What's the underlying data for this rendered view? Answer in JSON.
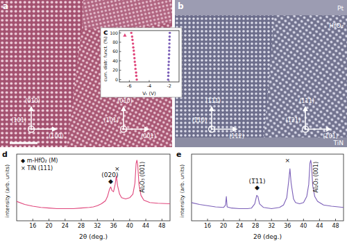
{
  "tem_a": {
    "title": "a",
    "orientations": [
      {
        "up": "(010)",
        "out": "(101)",
        "right": "(100)"
      },
      {
        "up": "(010)",
        "out": "(101)",
        "right": "(001)"
      }
    ]
  },
  "tem_b": {
    "title": "b",
    "layers": [
      "Pt",
      "HfO₂",
      "TiN"
    ],
    "orientations": [
      {
        "up": "(111)",
        "out": "(1̅10)",
        "right": "(112)"
      },
      {
        "up": "(111)",
        "out": "(1̅21)",
        "right": "(101)"
      }
    ]
  },
  "chart_data": [
    {
      "type": "scatter",
      "title": "c",
      "x_label": "Vₜ (V)",
      "y_label": "cum. distr. funct. (%)",
      "xlim": [
        -7,
        -1
      ],
      "xticks": [
        -6,
        -4,
        -2
      ],
      "ylim": [
        -5,
        105
      ],
      "yticks": [
        0,
        20,
        40,
        60,
        80,
        100
      ],
      "series": [
        {
          "color": "#e0457b",
          "marker": "circle",
          "x": [
            -5.25,
            -5.3,
            -5.32,
            -5.38,
            -5.4,
            -5.45,
            -5.48,
            -5.52,
            -5.55,
            -5.6,
            -5.63,
            -5.68,
            -5.72,
            -5.8
          ],
          "values": [
            0,
            8,
            15,
            23,
            31,
            38,
            46,
            54,
            62,
            69,
            77,
            85,
            92,
            100
          ]
        },
        {
          "color": "#e0457b",
          "marker": "triangle",
          "x": [
            -6.45
          ],
          "values": [
            95
          ]
        },
        {
          "color": "#7b5fb8",
          "marker": "circle",
          "x": [
            -2.1,
            -2.08,
            -2.07,
            -2.06,
            -2.05,
            -2.03,
            -2.02,
            -2.0,
            -1.99,
            -1.98,
            -1.97,
            -1.96,
            -1.95,
            -1.93
          ],
          "values": [
            0,
            8,
            15,
            23,
            31,
            38,
            46,
            54,
            62,
            69,
            77,
            85,
            92,
            100
          ]
        }
      ]
    },
    {
      "type": "line",
      "title": "d",
      "x_label": "2θ (deg.)",
      "y_label": "intensity (arb. units)",
      "xlim": [
        12,
        50
      ],
      "xticks": [
        16,
        20,
        24,
        28,
        32,
        36,
        40,
        44,
        48
      ],
      "ylim": [
        0,
        110
      ],
      "tick_labels": "x",
      "legend_texts": [
        "◆ m-HfO₂ (M)",
        "× TiN (111)"
      ],
      "annotations": [
        {
          "text": "◆",
          "x": 35.3,
          "y": 62
        },
        {
          "text": "(020)",
          "x": 35.1,
          "y": 72
        },
        {
          "text": "×",
          "x": 36.9,
          "y": 82
        }
      ],
      "peak_label": {
        "text": "Al₂O₃ (001)",
        "x": 43.6,
        "y": 72
      },
      "series": [
        {
          "color": "#e0457b",
          "x": [
            12,
            14,
            16,
            18,
            20,
            22,
            24,
            26,
            28,
            30,
            31,
            32,
            33,
            34,
            34.5,
            35,
            35.3,
            35.6,
            36,
            36.4,
            36.7,
            37,
            37.5,
            38,
            39,
            40,
            40.8,
            41.3,
            41.6,
            41.8,
            42,
            42.3,
            42.8,
            43.5,
            45,
            47,
            50
          ],
          "values": [
            32,
            27,
            24,
            22,
            21,
            20,
            20,
            20,
            21,
            22,
            23,
            25,
            28,
            33,
            40,
            52,
            56,
            50,
            48,
            60,
            74,
            58,
            44,
            38,
            36,
            38,
            44,
            62,
            95,
            100,
            92,
            60,
            42,
            34,
            30,
            29,
            28
          ]
        }
      ]
    },
    {
      "type": "line",
      "title": "e",
      "x_label": "2θ (deg.)",
      "y_label": "intensity (arb. units)",
      "xlim": [
        12,
        50
      ],
      "xticks": [
        16,
        20,
        24,
        28,
        32,
        36,
        40,
        44,
        48
      ],
      "ylim": [
        0,
        110
      ],
      "tick_labels": "x",
      "annotations": [
        {
          "text": "◆",
          "x": 28.4,
          "y": 52
        },
        {
          "text": "(1̅11)",
          "x": 28.4,
          "y": 62
        },
        {
          "text": "×",
          "x": 36.0,
          "y": 96
        }
      ],
      "peak_label": {
        "text": "Al₂O₃ (001)",
        "x": 43.6,
        "y": 72
      },
      "series": [
        {
          "color": "#7b5fb8",
          "x": [
            12,
            14,
            16,
            18,
            20,
            20.5,
            20.7,
            20.9,
            22,
            24,
            26,
            27,
            27.8,
            28.3,
            28.6,
            29,
            30,
            32,
            34,
            35,
            35.8,
            36.3,
            36.6,
            36.9,
            37.5,
            38,
            39,
            40,
            40.8,
            41.3,
            41.6,
            41.8,
            42,
            42.3,
            42.8,
            43.5,
            45,
            47,
            50
          ],
          "values": [
            30,
            27,
            25,
            23,
            22,
            26,
            40,
            23,
            21,
            20,
            20,
            21,
            28,
            42,
            40,
            28,
            22,
            20,
            22,
            26,
            38,
            66,
            86,
            62,
            36,
            30,
            28,
            30,
            40,
            60,
            95,
            100,
            92,
            58,
            40,
            32,
            26,
            24,
            22
          ]
        }
      ]
    }
  ]
}
